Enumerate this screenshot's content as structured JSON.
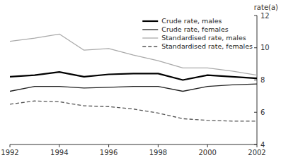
{
  "chart_data": {
    "type": "line",
    "x": [
      1992,
      1993,
      1994,
      1995,
      1996,
      1997,
      1998,
      1999,
      2000,
      2001,
      2002
    ],
    "series": [
      {
        "name": "Crude rate, males",
        "color": "#000000",
        "line_style": "solid",
        "values": [
          8.2,
          8.3,
          8.5,
          8.2,
          8.35,
          8.4,
          8.4,
          8.0,
          8.3,
          8.2,
          8.1
        ]
      },
      {
        "name": "Crude rate, females",
        "color": "#222222",
        "line_style": "solid",
        "values": [
          7.3,
          7.6,
          7.6,
          7.5,
          7.55,
          7.6,
          7.6,
          7.3,
          7.6,
          7.7,
          7.75
        ]
      },
      {
        "name": "Standardised rate, males",
        "color": "#aaaaaa",
        "line_style": "solid",
        "values": [
          10.4,
          10.6,
          10.85,
          9.85,
          9.95,
          9.55,
          9.2,
          8.75,
          8.75,
          8.55,
          8.3
        ]
      },
      {
        "name": "Standardised rate, females",
        "color": "#555555",
        "line_style": "dashed",
        "values": [
          6.5,
          6.7,
          6.65,
          6.4,
          6.35,
          6.2,
          5.95,
          5.6,
          5.5,
          5.45,
          5.45
        ]
      }
    ],
    "ylabel": "rate(a)",
    "xlim": [
      1992,
      2002
    ],
    "xticks": [
      1992,
      1994,
      1996,
      1998,
      2000,
      2002
    ],
    "ylim": [
      4,
      12
    ],
    "yticks": [
      4,
      6,
      8,
      10,
      12
    ],
    "grid": false,
    "legend": "upper right"
  }
}
